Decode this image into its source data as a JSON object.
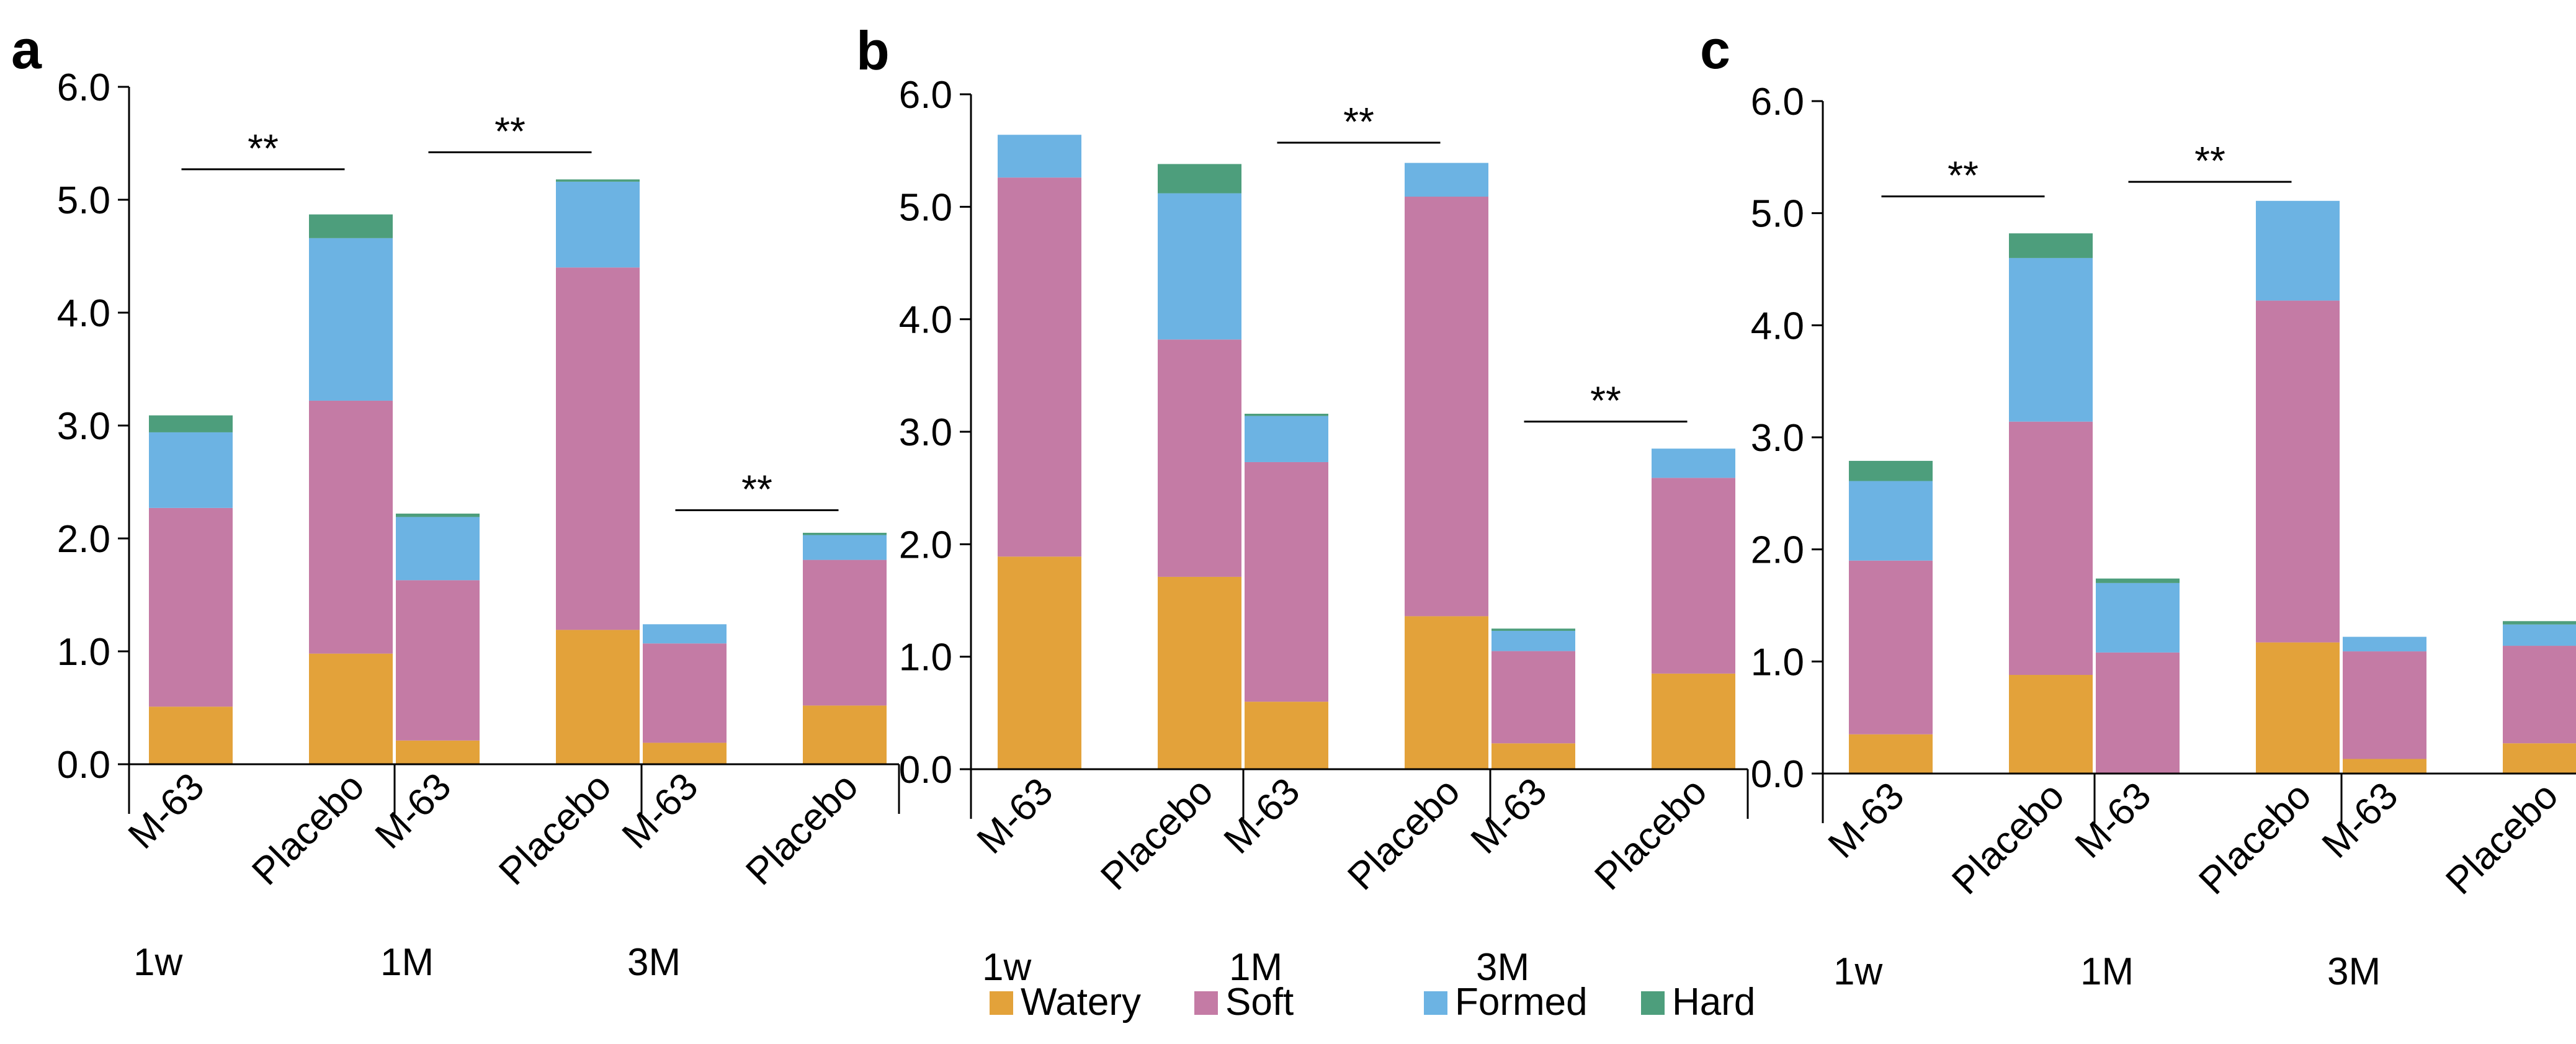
{
  "chart_data": [
    {
      "type": "bar",
      "stacked": true,
      "panel": "a",
      "ylim": [
        0,
        6.0
      ],
      "yticks": [
        "0.0",
        "1.0",
        "2.0",
        "3.0",
        "4.0",
        "5.0",
        "6.0"
      ],
      "categories": [
        "M-63",
        "Placebo",
        "M-63",
        "Placebo",
        "M-63",
        "Placebo"
      ],
      "groups": [
        "1w",
        "1M",
        "3M"
      ],
      "series": [
        {
          "name": "Watery",
          "values": [
            0.51,
            0.98,
            0.21,
            1.19,
            0.19,
            0.52
          ]
        },
        {
          "name": "Soft",
          "values": [
            1.76,
            2.24,
            1.42,
            3.21,
            0.88,
            1.29
          ]
        },
        {
          "name": "Formed",
          "values": [
            0.67,
            1.44,
            0.56,
            0.76,
            0.17,
            0.22
          ]
        },
        {
          "name": "Hard",
          "values": [
            0.15,
            0.21,
            0.03,
            0.02,
            0.0,
            0.02
          ]
        }
      ],
      "significance": [
        {
          "label": "**",
          "from": 0,
          "to": 1,
          "y": 5.27
        },
        {
          "label": "**",
          "from": 2,
          "to": 3,
          "y": 5.42
        },
        {
          "label": "**",
          "from": 4,
          "to": 5,
          "y": 2.25
        }
      ]
    },
    {
      "type": "bar",
      "stacked": true,
      "panel": "b",
      "ylim": [
        0,
        6.0
      ],
      "yticks": [
        "0.0",
        "1.0",
        "2.0",
        "3.0",
        "4.0",
        "5.0",
        "6.0"
      ],
      "categories": [
        "M-63",
        "Placebo",
        "M-63",
        "Placebo",
        "M-63",
        "Placebo"
      ],
      "groups": [
        "1w",
        "1M",
        "3M"
      ],
      "series": [
        {
          "name": "Watery",
          "values": [
            1.89,
            1.71,
            0.6,
            1.36,
            0.23,
            0.85
          ]
        },
        {
          "name": "Soft",
          "values": [
            3.37,
            2.11,
            2.13,
            3.73,
            0.82,
            1.74
          ]
        },
        {
          "name": "Formed",
          "values": [
            0.38,
            1.3,
            0.41,
            0.3,
            0.18,
            0.26
          ]
        },
        {
          "name": "Hard",
          "values": [
            0.0,
            0.26,
            0.02,
            0.0,
            0.02,
            0.0
          ]
        }
      ],
      "significance": [
        {
          "label": "**",
          "from": 2,
          "to": 3,
          "y": 5.57
        },
        {
          "label": "**",
          "from": 4,
          "to": 5,
          "y": 3.09
        }
      ]
    },
    {
      "type": "bar",
      "stacked": true,
      "panel": "c",
      "ylim": [
        0,
        6.0
      ],
      "yticks": [
        "0.0",
        "1.0",
        "2.0",
        "3.0",
        "4.0",
        "5.0",
        "6.0"
      ],
      "categories": [
        "M-63",
        "Placebo",
        "M-63",
        "Placebo",
        "M-63",
        "Placebo"
      ],
      "groups": [
        "1w",
        "1M",
        "3M"
      ],
      "series": [
        {
          "name": "Watery",
          "values": [
            0.35,
            0.88,
            0.0,
            1.17,
            0.13,
            0.27
          ]
        },
        {
          "name": "Soft",
          "values": [
            1.55,
            2.26,
            1.08,
            3.05,
            0.96,
            0.87
          ]
        },
        {
          "name": "Formed",
          "values": [
            0.71,
            1.46,
            0.62,
            0.89,
            0.13,
            0.19
          ]
        },
        {
          "name": "Hard",
          "values": [
            0.18,
            0.22,
            0.04,
            0.0,
            0.0,
            0.03
          ]
        }
      ],
      "significance": [
        {
          "label": "**",
          "from": 0,
          "to": 1,
          "y": 5.15
        },
        {
          "label": "**",
          "from": 2,
          "to": 3,
          "y": 5.28
        }
      ]
    }
  ],
  "legend": [
    {
      "name": "Watery",
      "color": "#e3a23a"
    },
    {
      "name": "Soft",
      "color": "#c47ba5"
    },
    {
      "name": "Formed",
      "color": "#6cb3e3"
    },
    {
      "name": "Hard",
      "color": "#4d9e7c"
    }
  ]
}
